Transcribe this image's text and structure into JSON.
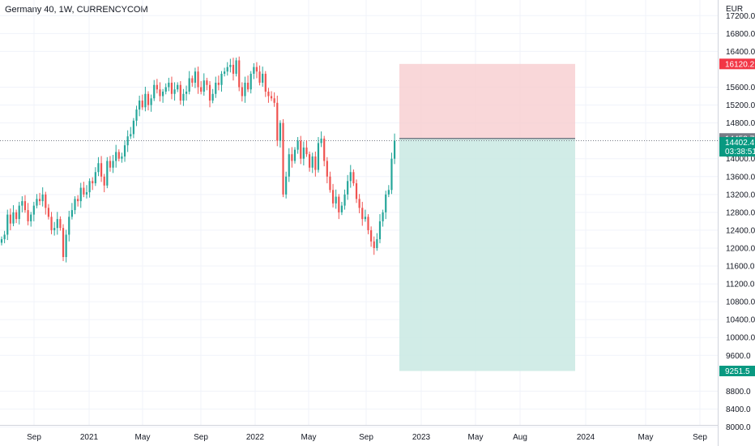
{
  "header": {
    "title": "Germany 40, 1W, CURRENCYCOM"
  },
  "axis": {
    "currency": "EUR"
  },
  "colors": {
    "up": "#26a69a",
    "down": "#ef5350",
    "grid": "#f0f3fa",
    "stop_zone": "#f8cdd0",
    "target_zone": "#c9e9e3"
  },
  "chart_data": {
    "type": "candlestick",
    "y_ticks": [
      "17200.0",
      "16800.0",
      "16400.0",
      "15600.0",
      "15200.0",
      "14800.0",
      "14000.0",
      "13600.0",
      "13200.0",
      "12800.0",
      "12400.0",
      "12000.0",
      "11600.0",
      "11200.0",
      "10800.0",
      "10400.0",
      "10000.0",
      "9600.0",
      "8800.0",
      "8400.0",
      "8000.0"
    ],
    "x_ticks": [
      "Sep",
      "2021",
      "May",
      "Sep",
      "2022",
      "May",
      "Sep",
      "2023",
      "May",
      "Aug",
      "2024",
      "May",
      "Sep"
    ],
    "ylim": [
      7900,
      17550
    ],
    "price_labels": [
      {
        "value": "16120.2",
        "color": "#f23645"
      },
      {
        "value": "14452.7",
        "color": "#787b86"
      },
      {
        "value": "14402.4",
        "color": "#089981"
      },
      {
        "value": "03:38:51",
        "color": "#089981"
      },
      {
        "value": "9251.5",
        "color": "#089981"
      }
    ],
    "position": {
      "entry": 14452.7,
      "stop": 16120.2,
      "target": 9251.5,
      "current": 14402.4
    },
    "candles_close": [
      12200,
      12300,
      12750,
      12550,
      12800,
      12650,
      12950,
      13050,
      12850,
      12600,
      12750,
      12950,
      13100,
      13050,
      13200,
      12900,
      12700,
      12400,
      12450,
      12650,
      12450,
      11800,
      12300,
      12700,
      12850,
      13100,
      13050,
      13350,
      13200,
      13250,
      13500,
      13450,
      13700,
      13900,
      13600,
      13400,
      13950,
      13800,
      13950,
      14150,
      14000,
      14050,
      14300,
      14500,
      14550,
      14850,
      15100,
      15300,
      15150,
      15450,
      15200,
      15350,
      15650,
      15550,
      15400,
      15500,
      15600,
      15700,
      15450,
      15550,
      15650,
      15300,
      15450,
      15500,
      15800,
      15700,
      15950,
      15600,
      15500,
      15750,
      15650,
      15300,
      15450,
      15700,
      15650,
      15900,
      15950,
      16050,
      16100,
      15900,
      16200,
      15600,
      15400,
      15700,
      15550,
      15900,
      16050,
      15950,
      15700,
      15900,
      15500,
      15400,
      15350,
      15250,
      14400,
      14800,
      13200,
      13600,
      14100,
      13950,
      14200,
      14400,
      14000,
      14250,
      14100,
      13800,
      14050,
      13750,
      14350,
      14450,
      13950,
      13600,
      13300,
      13000,
      13150,
      12800,
      12950,
      13200,
      13500,
      13700,
      13450,
      13100,
      12900,
      12650,
      12700,
      12400,
      12150,
      12000,
      12200,
      12600,
      12800,
      13200,
      13300,
      14000,
      14402.4
    ]
  }
}
